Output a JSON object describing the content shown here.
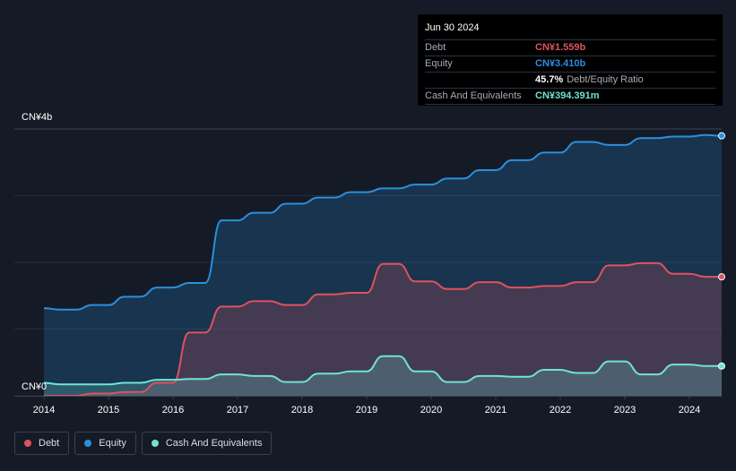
{
  "tooltip": {
    "date": "Jun 30 2024",
    "debt_label": "Debt",
    "debt_value": "CN¥1.559b",
    "equity_label": "Equity",
    "equity_value": "CN¥3.410b",
    "ratio_value": "45.7%",
    "ratio_label": "Debt/Equity Ratio",
    "cash_label": "Cash And Equivalents",
    "cash_value": "CN¥394.391m"
  },
  "legend": {
    "debt": "Debt",
    "equity": "Equity",
    "cash": "Cash And Equivalents"
  },
  "colors": {
    "debt": "#e0525f",
    "equity": "#2a8fe0",
    "cash": "#6fe3d4",
    "background": "#151b26"
  },
  "chart_data": {
    "type": "area",
    "title": "",
    "xlabel": "",
    "ylabel": "",
    "ylim": [
      0,
      3.5
    ],
    "y_unit": "CN¥ billions",
    "y_tick_labels": [
      {
        "value": 3.5,
        "label": "CN¥4b"
      },
      {
        "value": 0,
        "label": "CN¥0"
      }
    ],
    "x_range": [
      2013.7,
      2024.5
    ],
    "x_ticks": [
      2014,
      2015,
      2016,
      2017,
      2018,
      2019,
      2020,
      2021,
      2022,
      2023,
      2024
    ],
    "x_tick_labels": [
      "2014",
      "2015",
      "2016",
      "2017",
      "2018",
      "2019",
      "2020",
      "2021",
      "2022",
      "2023",
      "2024"
    ],
    "series": [
      {
        "name": "Equity",
        "key": "equity",
        "x": [
          2014.0,
          2014.25,
          2014.5,
          2014.75,
          2015.0,
          2015.25,
          2015.5,
          2015.75,
          2016.0,
          2016.25,
          2016.5,
          2016.75,
          2017.0,
          2017.25,
          2017.5,
          2017.75,
          2018.0,
          2018.25,
          2018.5,
          2018.75,
          2019.0,
          2019.25,
          2019.5,
          2019.75,
          2020.0,
          2020.25,
          2020.5,
          2020.75,
          2021.0,
          2021.25,
          2021.5,
          2021.75,
          2022.0,
          2022.25,
          2022.5,
          2022.75,
          2023.0,
          2023.25,
          2023.5,
          2023.75,
          2024.0,
          2024.25,
          2024.5
        ],
        "values": [
          1.15,
          1.13,
          1.13,
          1.19,
          1.19,
          1.3,
          1.3,
          1.42,
          1.42,
          1.48,
          1.48,
          2.3,
          2.3,
          2.4,
          2.4,
          2.52,
          2.52,
          2.6,
          2.6,
          2.67,
          2.67,
          2.72,
          2.72,
          2.77,
          2.77,
          2.85,
          2.85,
          2.96,
          2.96,
          3.09,
          3.09,
          3.19,
          3.19,
          3.33,
          3.33,
          3.29,
          3.29,
          3.38,
          3.38,
          3.4,
          3.4,
          3.42,
          3.41
        ]
      },
      {
        "name": "Debt",
        "key": "debt",
        "x": [
          2014.0,
          2014.25,
          2014.5,
          2014.75,
          2015.0,
          2015.25,
          2015.5,
          2015.75,
          2016.0,
          2016.25,
          2016.5,
          2016.75,
          2017.0,
          2017.25,
          2017.5,
          2017.75,
          2018.0,
          2018.25,
          2018.5,
          2018.75,
          2019.0,
          2019.25,
          2019.5,
          2019.75,
          2020.0,
          2020.25,
          2020.5,
          2020.75,
          2021.0,
          2021.25,
          2021.5,
          2021.75,
          2022.0,
          2022.25,
          2022.5,
          2022.75,
          2023.0,
          2023.25,
          2023.5,
          2023.75,
          2024.0,
          2024.25,
          2024.5
        ],
        "values": [
          0.0,
          0.0,
          0.0,
          0.03,
          0.03,
          0.05,
          0.05,
          0.17,
          0.17,
          0.83,
          0.83,
          1.17,
          1.17,
          1.24,
          1.24,
          1.19,
          1.19,
          1.33,
          1.33,
          1.35,
          1.35,
          1.73,
          1.73,
          1.5,
          1.5,
          1.4,
          1.4,
          1.49,
          1.49,
          1.42,
          1.42,
          1.44,
          1.44,
          1.49,
          1.49,
          1.71,
          1.71,
          1.74,
          1.74,
          1.6,
          1.6,
          1.56,
          1.56
        ]
      },
      {
        "name": "Cash And Equivalents",
        "key": "cash",
        "x": [
          2014.0,
          2014.25,
          2014.5,
          2014.75,
          2015.0,
          2015.25,
          2015.5,
          2015.75,
          2016.0,
          2016.25,
          2016.5,
          2016.75,
          2017.0,
          2017.25,
          2017.5,
          2017.75,
          2018.0,
          2018.25,
          2018.5,
          2018.75,
          2019.0,
          2019.25,
          2019.5,
          2019.75,
          2020.0,
          2020.25,
          2020.5,
          2020.75,
          2021.0,
          2021.25,
          2021.5,
          2021.75,
          2022.0,
          2022.25,
          2022.5,
          2022.75,
          2023.0,
          2023.25,
          2023.5,
          2023.75,
          2024.0,
          2024.25,
          2024.5
        ],
        "values": [
          0.17,
          0.15,
          0.15,
          0.15,
          0.15,
          0.17,
          0.17,
          0.21,
          0.21,
          0.22,
          0.22,
          0.28,
          0.28,
          0.26,
          0.26,
          0.18,
          0.18,
          0.29,
          0.29,
          0.32,
          0.32,
          0.52,
          0.52,
          0.32,
          0.32,
          0.18,
          0.18,
          0.26,
          0.26,
          0.25,
          0.25,
          0.34,
          0.34,
          0.3,
          0.3,
          0.45,
          0.45,
          0.28,
          0.28,
          0.41,
          0.41,
          0.39,
          0.39
        ]
      }
    ]
  }
}
